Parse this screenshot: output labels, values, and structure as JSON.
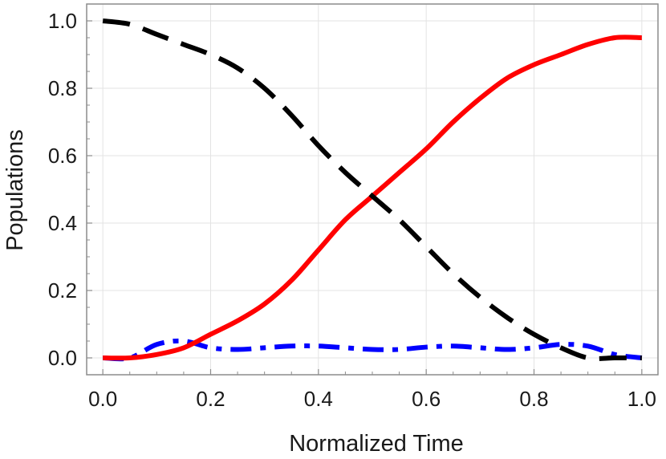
{
  "chart_data": {
    "type": "line",
    "xlabel": "Normalized Time",
    "ylabel": "Populations",
    "xlim": [
      -0.03,
      1.03
    ],
    "ylim": [
      -0.05,
      1.05
    ],
    "grid": true,
    "x_ticks": [
      0.0,
      0.2,
      0.4,
      0.6,
      0.8,
      1.0
    ],
    "x_tick_labels": [
      "0.0",
      "0.2",
      "0.4",
      "0.6",
      "0.8",
      "1.0"
    ],
    "y_ticks": [
      0.0,
      0.2,
      0.4,
      0.6,
      0.8,
      1.0
    ],
    "y_tick_labels": [
      "0.0",
      "0.2",
      "0.4",
      "0.6",
      "0.8",
      "1.0"
    ],
    "series": [
      {
        "style": "dashed",
        "color": "#000000",
        "x": [
          0.0,
          0.05,
          0.1,
          0.15,
          0.2,
          0.25,
          0.3,
          0.35,
          0.4,
          0.45,
          0.5,
          0.55,
          0.6,
          0.65,
          0.7,
          0.75,
          0.8,
          0.85,
          0.9,
          0.95,
          1.0
        ],
        "y": [
          1.0,
          0.99,
          0.96,
          0.93,
          0.9,
          0.86,
          0.8,
          0.72,
          0.63,
          0.55,
          0.48,
          0.41,
          0.33,
          0.25,
          0.18,
          0.12,
          0.07,
          0.03,
          0.0,
          0.0,
          0.0
        ]
      },
      {
        "style": "solid",
        "color": "#ff0000",
        "x": [
          0.0,
          0.05,
          0.1,
          0.15,
          0.2,
          0.25,
          0.3,
          0.35,
          0.4,
          0.45,
          0.5,
          0.55,
          0.6,
          0.65,
          0.7,
          0.75,
          0.8,
          0.85,
          0.9,
          0.95,
          1.0
        ],
        "y": [
          0.0,
          0.0,
          0.01,
          0.03,
          0.07,
          0.11,
          0.16,
          0.23,
          0.32,
          0.41,
          0.48,
          0.55,
          0.62,
          0.7,
          0.77,
          0.83,
          0.87,
          0.9,
          0.93,
          0.95,
          0.95
        ]
      },
      {
        "style": "dash-dot",
        "color": "#0000ff",
        "x": [
          0.0,
          0.05,
          0.1,
          0.15,
          0.2,
          0.25,
          0.3,
          0.35,
          0.4,
          0.45,
          0.5,
          0.55,
          0.6,
          0.65,
          0.7,
          0.75,
          0.8,
          0.85,
          0.9,
          0.95,
          1.0
        ],
        "y": [
          0.0,
          0.0,
          0.04,
          0.05,
          0.03,
          0.025,
          0.03,
          0.035,
          0.035,
          0.03,
          0.025,
          0.025,
          0.032,
          0.035,
          0.03,
          0.025,
          0.03,
          0.04,
          0.035,
          0.01,
          0.0
        ]
      }
    ]
  }
}
